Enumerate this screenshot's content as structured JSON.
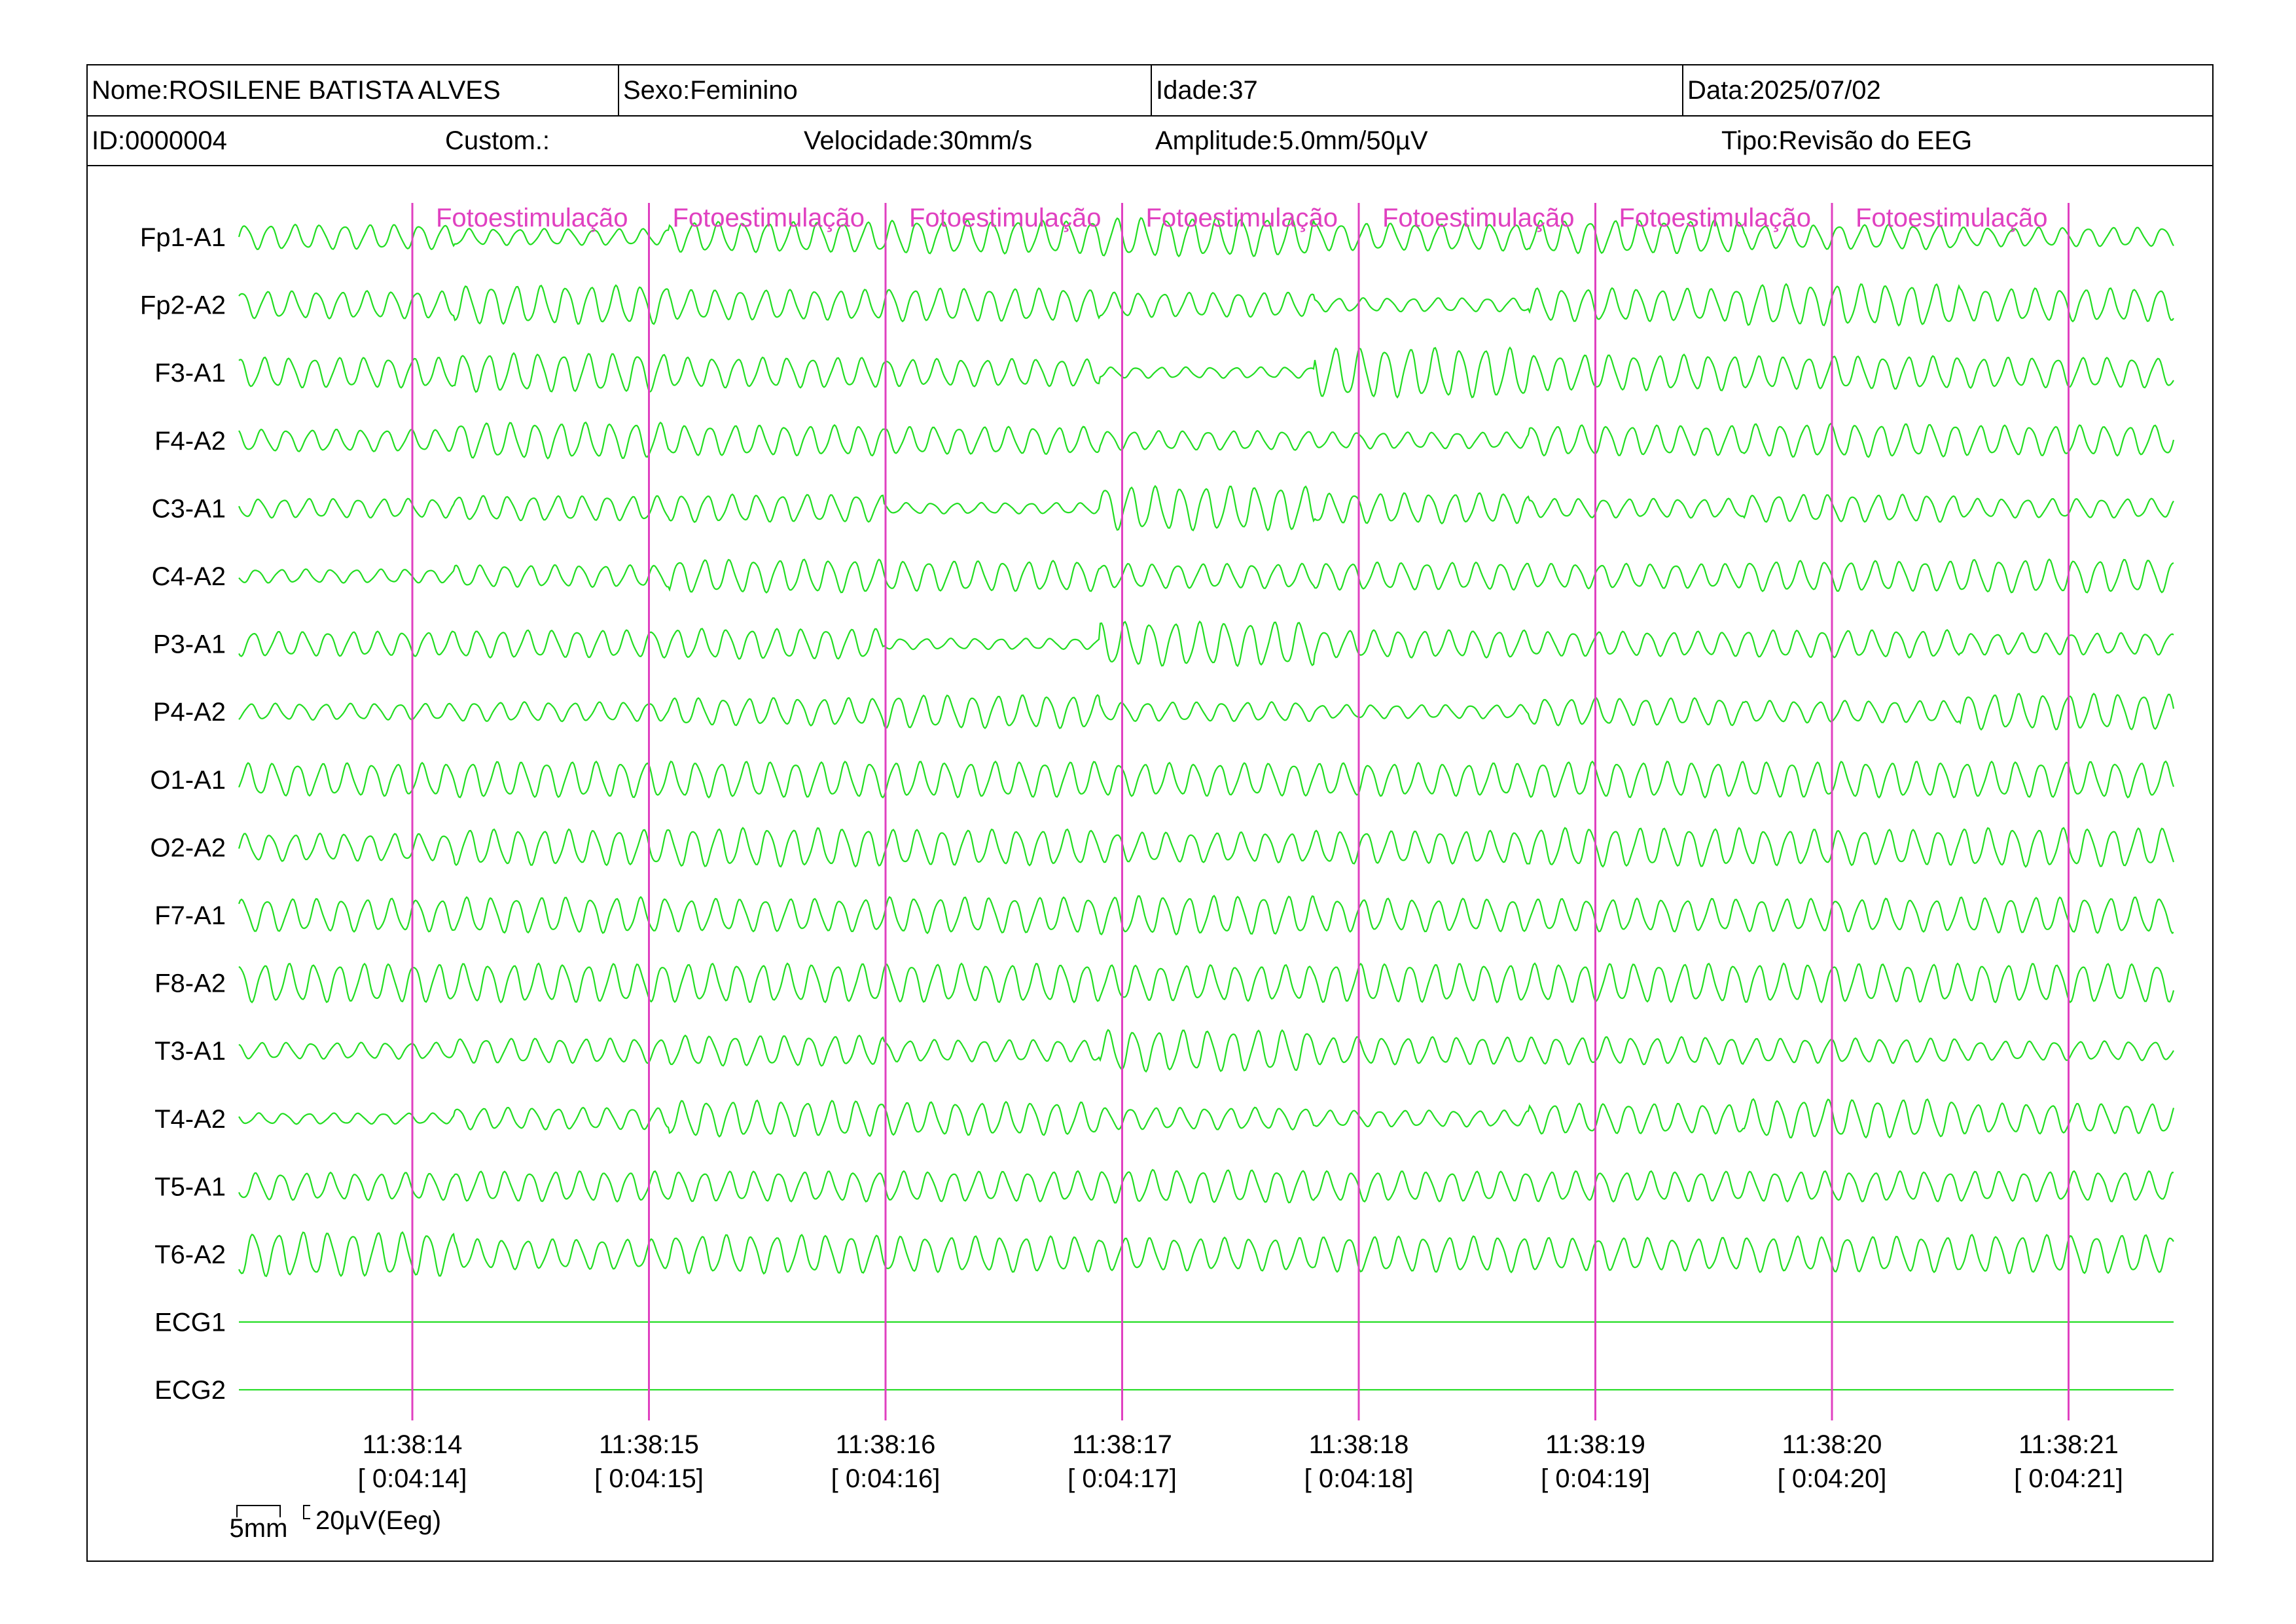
{
  "header": {
    "nome": "Nome:ROSILENE BATISTA ALVES",
    "sexo": "Sexo:Feminino",
    "idade": "Idade:37",
    "data": "Data:2025/07/02",
    "id": "ID:0000004",
    "custom": "Custom.:",
    "velocidade": "Velocidade:30mm/s",
    "amplitude": "Amplitude:5.0mm/50µV",
    "tipo": "Tipo:Revisão do EEG"
  },
  "colors": {
    "trace": "#22dd22",
    "marker": "#e040c0",
    "border": "#000000"
  },
  "chart_data": {
    "type": "line",
    "channels": [
      "Fp1-A1",
      "Fp2-A2",
      "F3-A1",
      "F4-A2",
      "C3-A1",
      "C4-A2",
      "P3-A1",
      "P4-A2",
      "O1-A1",
      "O2-A2",
      "F7-A1",
      "F8-A2",
      "T3-A1",
      "T4-A2",
      "T5-A1",
      "T6-A2",
      "ECG1",
      "ECG2"
    ],
    "time_ticks": [
      "11:38:14",
      "11:38:15",
      "11:38:16",
      "11:38:17",
      "11:38:18",
      "11:38:19",
      "11:38:20",
      "11:38:21"
    ],
    "elapsed_ticks": [
      "[ 0:04:14]",
      "[ 0:04:15]",
      "[ 0:04:16]",
      "[ 0:04:17]",
      "[ 0:04:18]",
      "[ 0:04:19]",
      "[ 0:04:20]",
      "[ 0:04:21]"
    ],
    "event_label": "Fotoestimulação",
    "event_count": 7,
    "scale_time": "5mm",
    "scale_amplitude": "20µV(Eeg)",
    "segment_amplitudes": [
      [
        0.45,
        0.3,
        0.55,
        0.6,
        0.7,
        0.5,
        0.6,
        0.45,
        0.35
      ],
      [
        0.5,
        0.7,
        0.55,
        0.6,
        0.45,
        0.25,
        0.6,
        0.75,
        0.6
      ],
      [
        0.55,
        0.7,
        0.55,
        0.5,
        0.2,
        0.9,
        0.65,
        0.6,
        0.55
      ],
      [
        0.4,
        0.65,
        0.55,
        0.5,
        0.35,
        0.3,
        0.55,
        0.6,
        0.55
      ],
      [
        0.35,
        0.45,
        0.5,
        0.2,
        0.8,
        0.55,
        0.35,
        0.5,
        0.35
      ],
      [
        0.25,
        0.4,
        0.6,
        0.55,
        0.45,
        0.5,
        0.45,
        0.55,
        0.6
      ],
      [
        0.45,
        0.5,
        0.55,
        0.2,
        0.8,
        0.5,
        0.45,
        0.5,
        0.4
      ],
      [
        0.3,
        0.35,
        0.5,
        0.6,
        0.35,
        0.25,
        0.5,
        0.4,
        0.65
      ],
      [
        0.6,
        0.65,
        0.65,
        0.65,
        0.6,
        0.6,
        0.65,
        0.65,
        0.65
      ],
      [
        0.5,
        0.65,
        0.7,
        0.65,
        0.55,
        0.6,
        0.7,
        0.65,
        0.7
      ],
      [
        0.6,
        0.65,
        0.6,
        0.65,
        0.7,
        0.6,
        0.6,
        0.6,
        0.65
      ],
      [
        0.7,
        0.7,
        0.7,
        0.7,
        0.65,
        0.7,
        0.7,
        0.7,
        0.7
      ],
      [
        0.3,
        0.45,
        0.55,
        0.4,
        0.75,
        0.5,
        0.5,
        0.45,
        0.35
      ],
      [
        0.2,
        0.4,
        0.65,
        0.6,
        0.4,
        0.3,
        0.55,
        0.7,
        0.55
      ],
      [
        0.5,
        0.55,
        0.55,
        0.55,
        0.6,
        0.55,
        0.55,
        0.55,
        0.55
      ],
      [
        0.8,
        0.55,
        0.7,
        0.65,
        0.6,
        0.65,
        0.6,
        0.65,
        0.7
      ],
      [
        0,
        0,
        0,
        0,
        0,
        0,
        0,
        0,
        0
      ],
      [
        0,
        0,
        0,
        0,
        0,
        0,
        0,
        0,
        0
      ]
    ]
  }
}
